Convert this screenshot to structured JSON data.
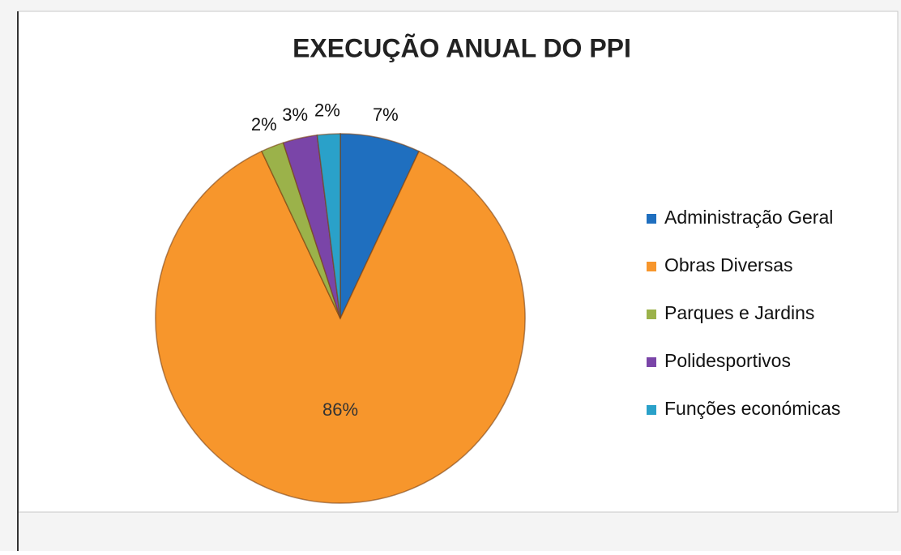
{
  "chart_data": {
    "type": "pie",
    "title": "EXECUÇÃO ANUAL DO PPI",
    "categories": [
      "Administração Geral",
      "Obras Diversas",
      "Parques e Jardins",
      "Polidesportivos",
      "Funções económicas"
    ],
    "values": [
      7,
      86,
      2,
      3,
      2
    ],
    "value_labels": [
      "7%",
      "86%",
      "2%",
      "3%",
      "2%"
    ],
    "colors": [
      "#1f6fbf",
      "#f7962c",
      "#9bb24a",
      "#7a45a8",
      "#2aa1c9"
    ],
    "legend": "right"
  }
}
